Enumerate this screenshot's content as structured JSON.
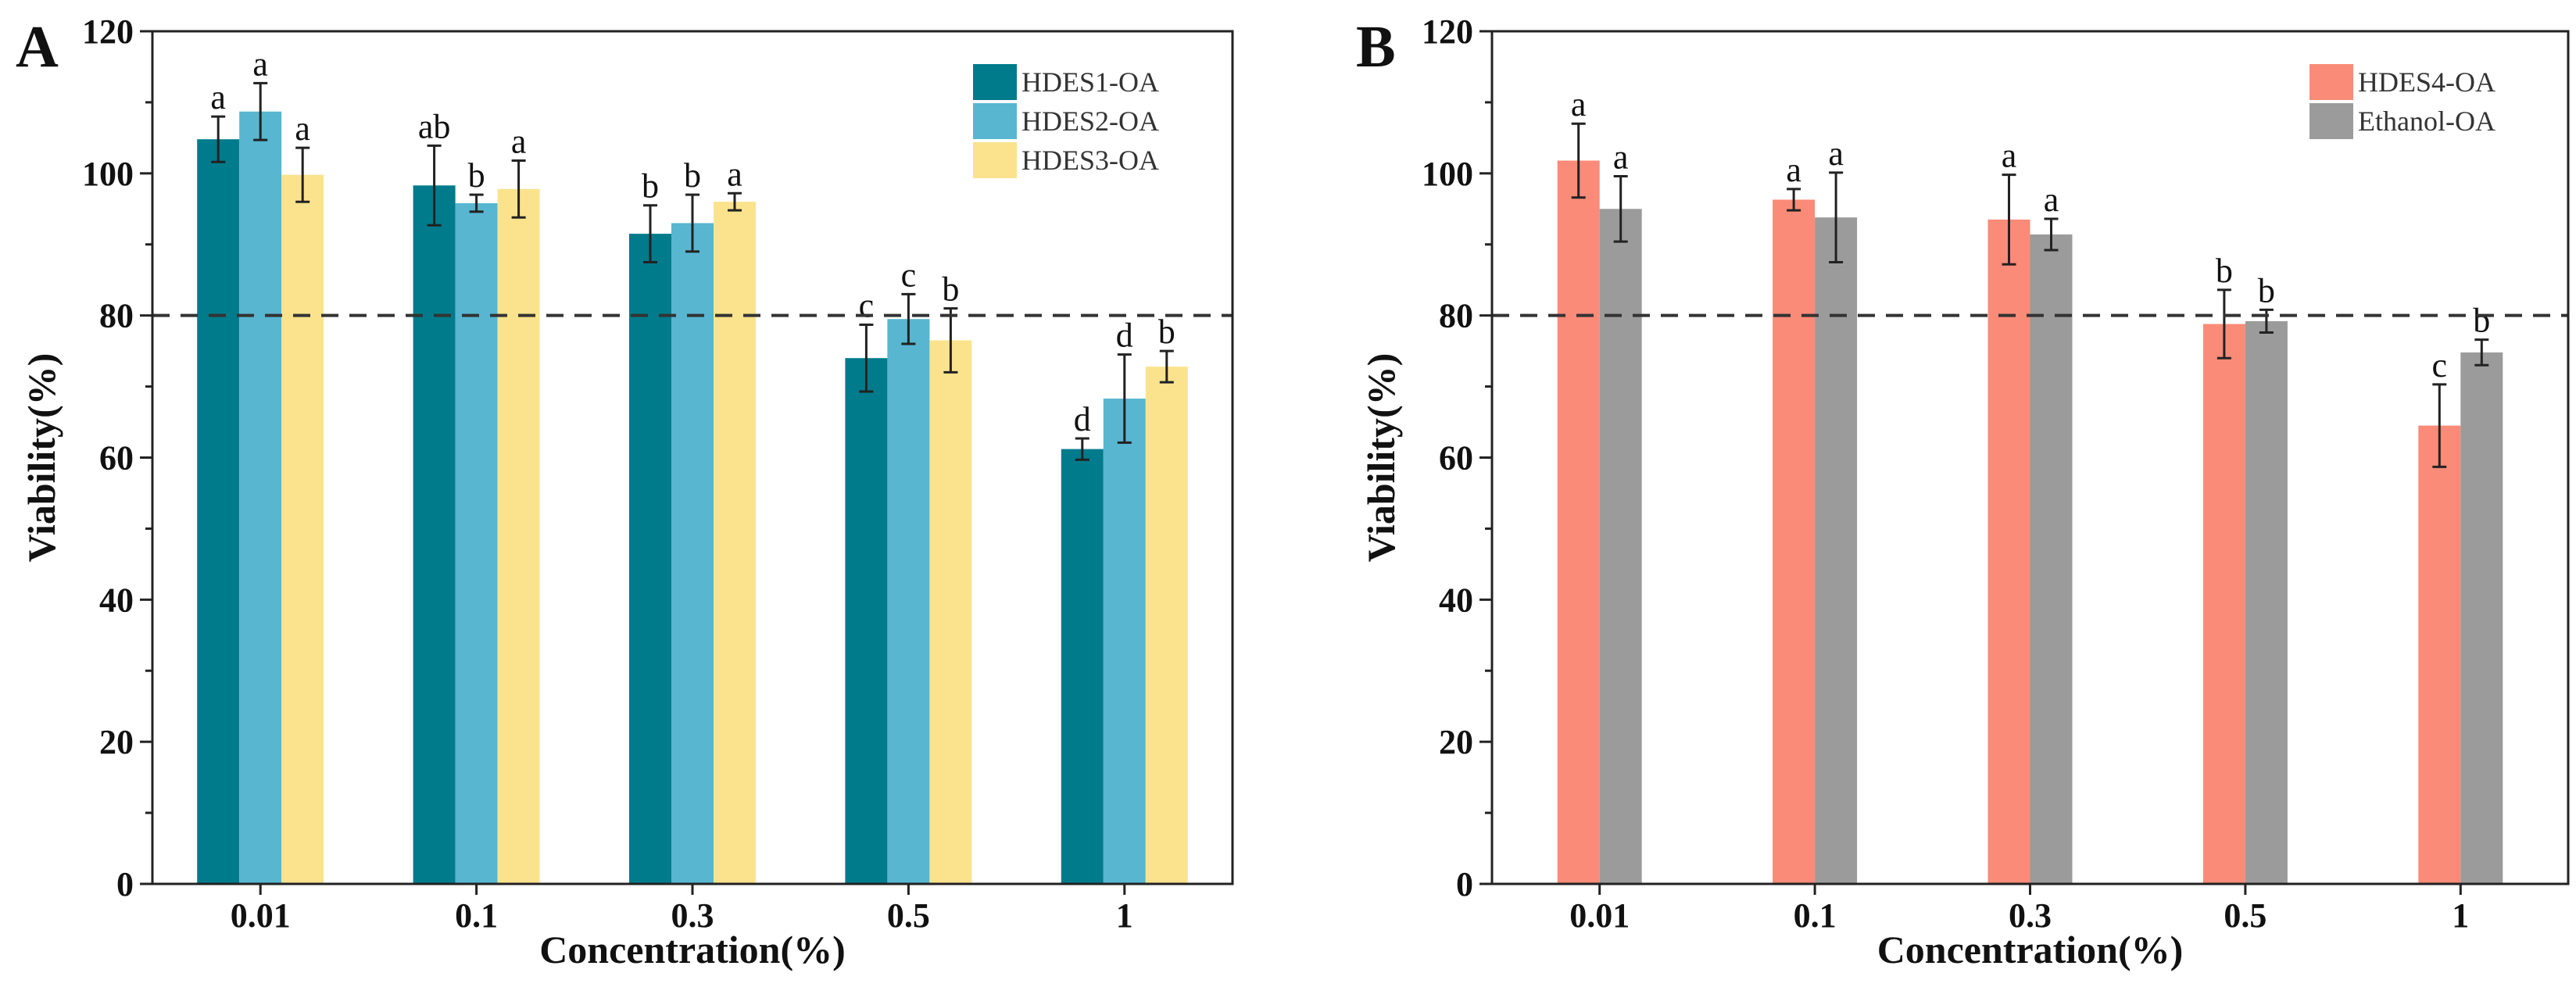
{
  "chart_data": [
    {
      "type": "bar",
      "panel_label": "A",
      "categories": [
        "0.01",
        "0.1",
        "0.3",
        "0.5",
        "1"
      ],
      "xlabel": "Concentration(%)",
      "ylabel": "Viability(%)",
      "ylim": [
        0,
        120
      ],
      "yticks": [
        "0",
        "20",
        "40",
        "60",
        "80",
        "100",
        "120"
      ],
      "reference_line": 80,
      "legend_position": "top-right",
      "series": [
        {
          "name": "HDES1-OA",
          "color": "#007b8b",
          "values": [
            104.8,
            98.3,
            91.5,
            74.0,
            61.2
          ],
          "errors": [
            3.2,
            5.6,
            4.0,
            4.7,
            1.5
          ],
          "letters": [
            "a",
            "ab",
            "b",
            "c",
            "d"
          ]
        },
        {
          "name": "HDES2-OA",
          "color": "#58b6d0",
          "values": [
            108.7,
            95.8,
            93.0,
            79.5,
            68.3
          ],
          "errors": [
            4.0,
            1.2,
            4.0,
            3.5,
            6.2
          ],
          "letters": [
            "a",
            "b",
            "b",
            "c",
            "d"
          ]
        },
        {
          "name": "HDES3-OA",
          "color": "#fbe38d",
          "values": [
            99.8,
            97.8,
            96.0,
            76.5,
            72.8
          ],
          "errors": [
            3.8,
            4.0,
            1.2,
            4.5,
            2.2
          ],
          "letters": [
            "a",
            "a",
            "a",
            "b",
            "b"
          ]
        }
      ]
    },
    {
      "type": "bar",
      "panel_label": "B",
      "categories": [
        "0.01",
        "0.1",
        "0.3",
        "0.5",
        "1"
      ],
      "xlabel": "Concentration(%)",
      "ylabel": "Viability(%)",
      "ylim": [
        0,
        120
      ],
      "yticks": [
        "0",
        "20",
        "40",
        "60",
        "80",
        "100",
        "120"
      ],
      "reference_line": 80,
      "legend_position": "top-right",
      "series": [
        {
          "name": "HDES4-OA",
          "color": "#fa8b78",
          "values": [
            101.8,
            96.3,
            93.5,
            78.8,
            64.5
          ],
          "errors": [
            5.2,
            1.5,
            6.3,
            4.8,
            5.8
          ],
          "letters": [
            "a",
            "a",
            "a",
            "b",
            "c"
          ]
        },
        {
          "name": "Ethanol-OA",
          "color": "#9b9b9b",
          "values": [
            95.0,
            93.8,
            91.4,
            79.2,
            74.8
          ],
          "errors": [
            4.6,
            6.3,
            2.2,
            1.6,
            1.8
          ],
          "letters": [
            "a",
            "a",
            "a",
            "b",
            "b"
          ]
        }
      ]
    }
  ]
}
